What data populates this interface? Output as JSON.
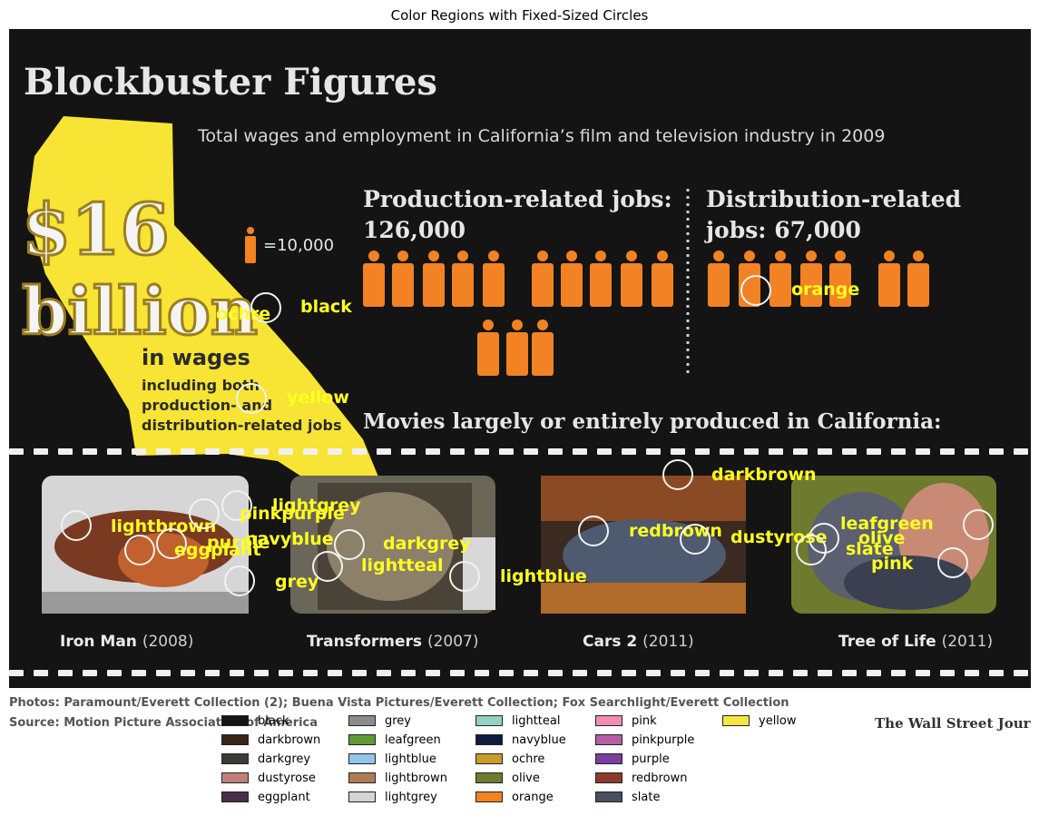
{
  "figure_title": "Color Regions with Fixed-Sized Circles",
  "poster": {
    "headline": "Blockbuster Figures",
    "subtitle": "Total wages and employment in California’s film and television industry in 2009",
    "wage_amount": "$16",
    "wage_unit": "billion",
    "wage_label": "in wages",
    "wage_note_1": "including both",
    "wage_note_2": "production- and",
    "wage_note_3": "distribution-related jobs",
    "icon_scale": "=10,000",
    "production_title_1": "Production-related jobs:",
    "production_title_2": "126,000",
    "distribution_title_1": "Distribution-related",
    "distribution_title_2": "jobs: 67,000",
    "movies_heading": "Movies largely or entirely produced in California:",
    "movies": [
      {
        "name": "Iron Man",
        "year": "(2008)"
      },
      {
        "name": "Transformers",
        "year": "(2007)"
      },
      {
        "name": "Cars 2",
        "year": "(2011)"
      },
      {
        "name": "Tree of Life",
        "year": "(2011)"
      }
    ],
    "credits_1": "Photos: Paramount/Everett Collection (2); Buena Vista Pictures/Everett Collection; Fox Searchlight/Everett Collection",
    "credits_2": "Source: Motion Picture Association of America",
    "publisher": "The Wall Street Journal"
  },
  "colors": {
    "poster_bg": "#141414",
    "yellow": "#f7e434",
    "orange": "#f28223",
    "label": "#ffff22"
  },
  "region_labels": [
    "ochre",
    "black",
    "orange",
    "yellow",
    "darkbrown",
    "lightgrey",
    "lightbrown",
    "pinkpurple",
    "purple",
    "navyblue",
    "eggplant",
    "darkgrey",
    "lightteal",
    "grey",
    "lightblue",
    "redbrown",
    "dustyrose",
    "leafgreen",
    "olive",
    "slate",
    "pink"
  ],
  "legend": [
    {
      "label": "black",
      "color": "#151515"
    },
    {
      "label": "darkbrown",
      "color": "#3a2518"
    },
    {
      "label": "darkgrey",
      "color": "#3d3a3a"
    },
    {
      "label": "dustyrose",
      "color": "#c17f7c"
    },
    {
      "label": "eggplant",
      "color": "#4b2f47"
    },
    {
      "label": "grey",
      "color": "#8c8c8c"
    },
    {
      "label": "leafgreen",
      "color": "#5f9a32"
    },
    {
      "label": "lightblue",
      "color": "#92c5ea"
    },
    {
      "label": "lightbrown",
      "color": "#b07a55"
    },
    {
      "label": "lightgrey",
      "color": "#d4d4d4"
    },
    {
      "label": "lightteal",
      "color": "#96d0c4"
    },
    {
      "label": "navyblue",
      "color": "#101c3d"
    },
    {
      "label": "ochre",
      "color": "#c99a2e"
    },
    {
      "label": "olive",
      "color": "#6e7a2d"
    },
    {
      "label": "orange",
      "color": "#f58220"
    },
    {
      "label": "pink",
      "color": "#f08db5"
    },
    {
      "label": "pinkpurple",
      "color": "#b85da5"
    },
    {
      "label": "purple",
      "color": "#7a3ea0"
    },
    {
      "label": "redbrown",
      "color": "#8b3a2e"
    },
    {
      "label": "slate",
      "color": "#4a5060"
    },
    {
      "label": "yellow",
      "color": "#f5e642"
    }
  ]
}
